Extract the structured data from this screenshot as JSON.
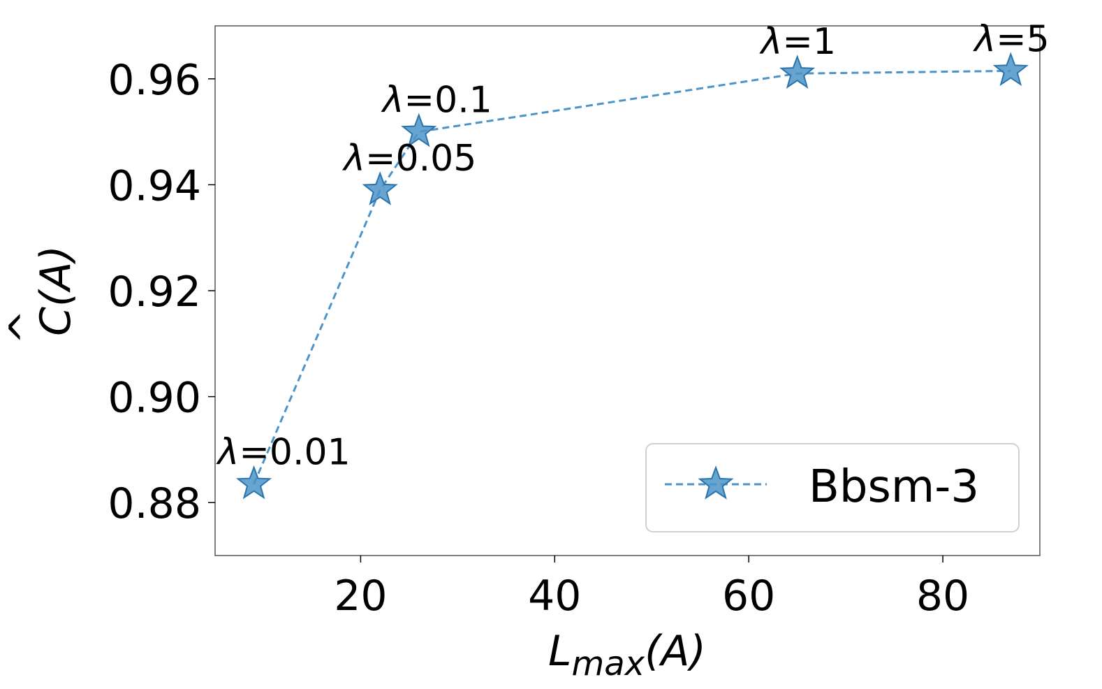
{
  "chart_data": {
    "type": "line",
    "xlabel": "L_max(A)",
    "xlabel_main": "L",
    "xlabel_sub": "max",
    "xlabel_tail": "(A)",
    "ylabel": "Ĉ(A)",
    "ylabel_hat": "^",
    "ylabel_main": "C(A)",
    "xlim": [
      5,
      90
    ],
    "ylim": [
      0.87,
      0.97
    ],
    "xticks": [
      20,
      40,
      60,
      80
    ],
    "xtick_labels": [
      "20",
      "40",
      "60",
      "80"
    ],
    "yticks": [
      0.88,
      0.9,
      0.92,
      0.94,
      0.96
    ],
    "ytick_labels": [
      "0.88",
      "0.90",
      "0.92",
      "0.94",
      "0.96"
    ],
    "grid": false,
    "legend_position": "bottom-right",
    "series": [
      {
        "name": "Bbsm-3",
        "color": "#4c94c8",
        "marker": "star",
        "linestyle": "dashed",
        "x": [
          9,
          22,
          26,
          65,
          87
        ],
        "y": [
          0.8835,
          0.939,
          0.95,
          0.961,
          0.9615
        ],
        "point_labels": [
          "λ=0.01",
          "λ=0.05",
          "λ=0.1",
          "λ=1",
          "λ=5"
        ]
      }
    ]
  }
}
